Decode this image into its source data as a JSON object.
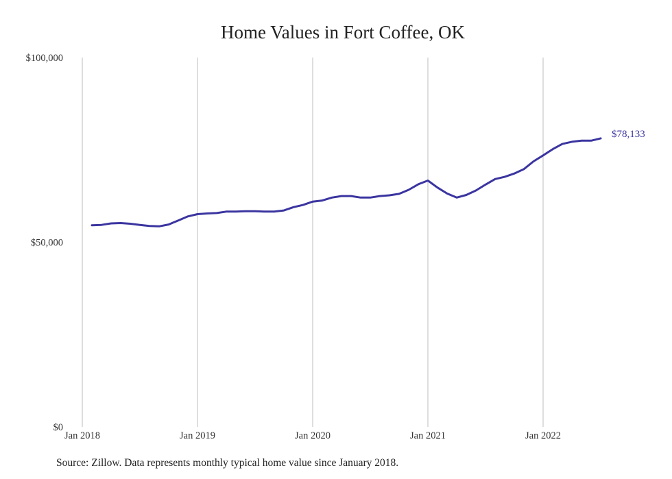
{
  "chart_data": {
    "type": "line",
    "title": "Home Values in Fort Coffee, OK",
    "xlabel": "",
    "ylabel": "",
    "ylim": [
      0,
      100000
    ],
    "x_tick_labels": [
      "Jan 2018",
      "Jan 2019",
      "Jan 2020",
      "Jan 2021",
      "Jan 2022"
    ],
    "y_tick_labels": [
      "$0",
      "$50,000",
      "$100,000"
    ],
    "y_ticks": [
      0,
      50000,
      100000
    ],
    "grid": "vertical",
    "line_color": "#3b35a0",
    "end_label": "$78,133",
    "series": [
      {
        "x": [
          "2018-02",
          "2018-03",
          "2018-04",
          "2018-05",
          "2018-06",
          "2018-07",
          "2018-08",
          "2018-09",
          "2018-10",
          "2018-11",
          "2018-12",
          "2019-01",
          "2019-02",
          "2019-03",
          "2019-04",
          "2019-05",
          "2019-06",
          "2019-07",
          "2019-08",
          "2019-09",
          "2019-10",
          "2019-11",
          "2019-12",
          "2020-01",
          "2020-02",
          "2020-03",
          "2020-04",
          "2020-05",
          "2020-06",
          "2020-07",
          "2020-08",
          "2020-09",
          "2020-10",
          "2020-11",
          "2020-12",
          "2021-01",
          "2021-02",
          "2021-03",
          "2021-04",
          "2021-05",
          "2021-06",
          "2021-07",
          "2021-08",
          "2021-09",
          "2021-10",
          "2021-11",
          "2021-12",
          "2022-01",
          "2022-02",
          "2022-03",
          "2022-04",
          "2022-05",
          "2022-06",
          "2022-07"
        ],
        "values": [
          54600,
          54700,
          55100,
          55200,
          55000,
          54700,
          54400,
          54300,
          54800,
          55900,
          57000,
          57600,
          57800,
          57900,
          58300,
          58300,
          58400,
          58400,
          58300,
          58300,
          58600,
          59500,
          60100,
          61000,
          61300,
          62100,
          62500,
          62500,
          62100,
          62100,
          62500,
          62700,
          63100,
          64200,
          65700,
          66700,
          64800,
          63200,
          62100,
          62800,
          64000,
          65600,
          67100,
          67700,
          68600,
          69800,
          71900,
          73500,
          75200,
          76600,
          77200,
          77500,
          77500,
          78133
        ]
      }
    ]
  },
  "footer": {
    "source": "Source: Zillow. Data represents monthly typical home value since January 2018."
  }
}
